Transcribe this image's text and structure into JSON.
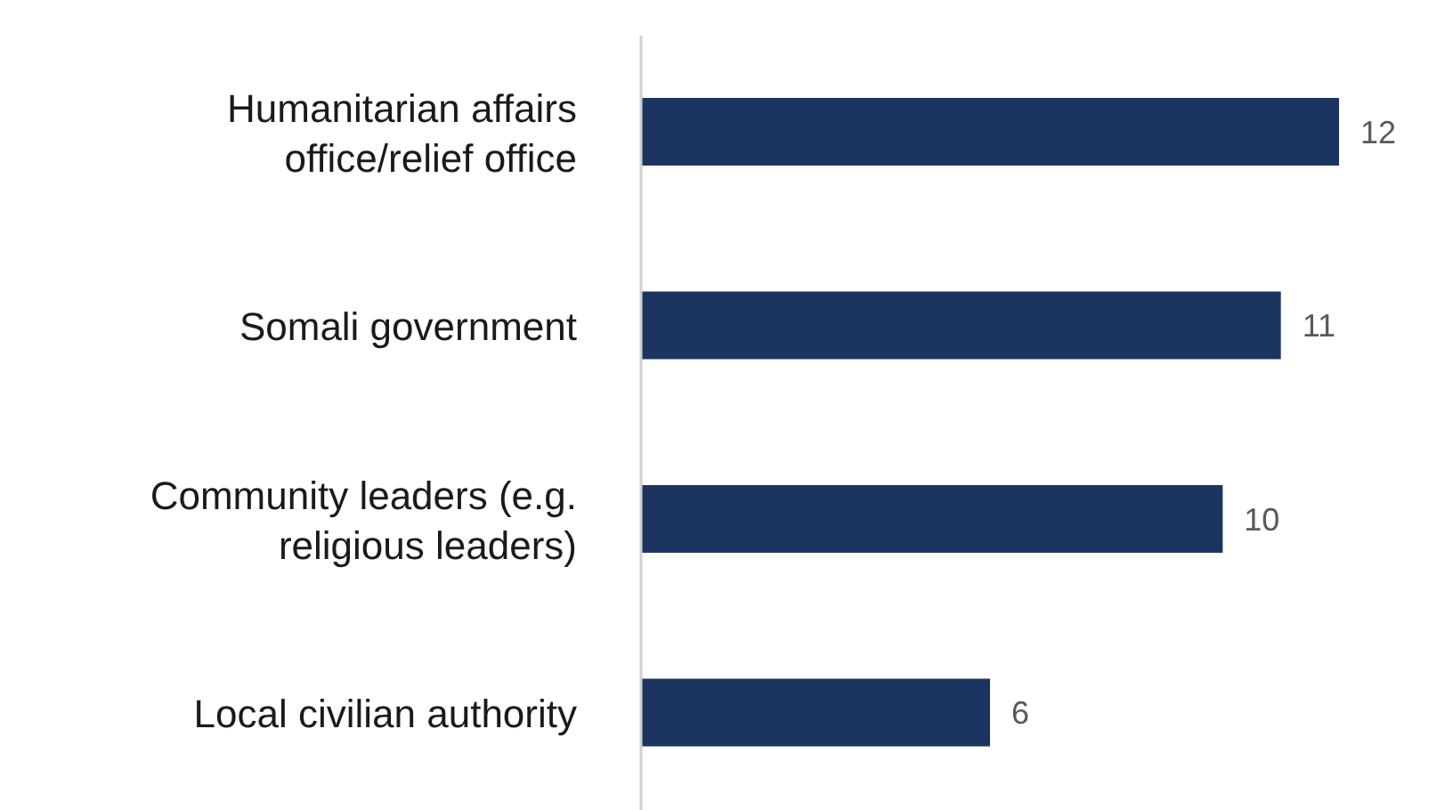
{
  "chart_data": {
    "type": "bar",
    "orientation": "horizontal",
    "categories": [
      "Humanitarian affairs office/relief office",
      "Somali government",
      "Community leaders (e.g. religious leaders)",
      "Local civilian authority"
    ],
    "values": [
      12,
      11,
      10,
      6
    ],
    "color": "#1b3560",
    "data_labels": true,
    "tick_labels": "y"
  }
}
